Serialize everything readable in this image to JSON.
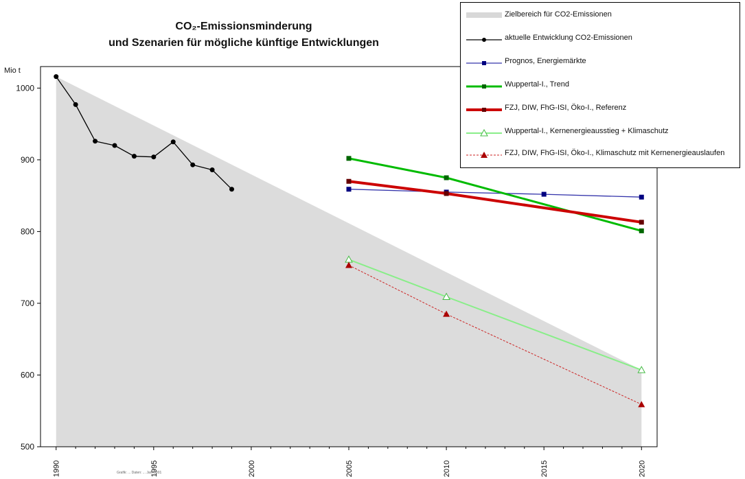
{
  "chart_data": {
    "type": "line",
    "title": "CO₂-Emissionsminderung",
    "subtitle": "und Szenarien für mögliche künftige Entwicklungen",
    "ylabel": "Mio t",
    "xlabel": "",
    "ylim": [
      500,
      1030
    ],
    "xlim": [
      1989.2,
      2020.8
    ],
    "yticks": [
      500,
      600,
      700,
      800,
      900,
      1000
    ],
    "xticks": [
      1990,
      1995,
      2000,
      2005,
      2010,
      2015,
      2020
    ],
    "grid": false,
    "legend_position": "top-right",
    "target_area": {
      "name": "Zielbereich für CO2-Emissionen",
      "color": "#dcdcdc",
      "x": [
        1990,
        2020
      ],
      "y": [
        1016,
        607
      ]
    },
    "series": [
      {
        "name": "aktuelle Entwicklung CO2-Emissionen",
        "color": "#000000",
        "width": 1.3,
        "marker": "circle",
        "dash": "",
        "x": [
          1990,
          1991,
          1992,
          1993,
          1994,
          1995,
          1996,
          1997,
          1998,
          1999
        ],
        "y": [
          1016,
          977,
          926,
          920,
          905,
          904,
          925,
          893,
          886,
          859
        ]
      },
      {
        "name": "Prognos, Energiemärkte",
        "color": "#3333aa",
        "width": 1.3,
        "marker": "square",
        "dash": "",
        "x": [
          2005,
          2010,
          2015,
          2020
        ],
        "y": [
          859,
          855,
          852,
          848
        ]
      },
      {
        "name": "Wuppertal-I., Trend",
        "color": "#00bb00",
        "width": 3,
        "marker": "square",
        "dash": "",
        "x": [
          2005,
          2010,
          2020
        ],
        "y": [
          902,
          875,
          801
        ]
      },
      {
        "name": "FZJ, DIW, FhG-ISI, Öko-I., Referenz",
        "color": "#cc0000",
        "width": 4,
        "marker": "square",
        "dash": "",
        "x": [
          2005,
          2010,
          2020
        ],
        "y": [
          870,
          853,
          813
        ]
      },
      {
        "name": "Wuppertal-I., Kernenergieausstieg + Klimaschutz",
        "color": "#88ee88",
        "width": 2,
        "marker": "triangle",
        "dash": "",
        "x": [
          2005,
          2010,
          2020
        ],
        "y": [
          761,
          709,
          607
        ]
      },
      {
        "name": "FZJ, DIW, FhG-ISI, Öko-I., Klimaschutz mit Kernenergieauslaufen",
        "color": "#cc2222",
        "width": 1,
        "marker": "triangle",
        "dash": "3,2",
        "x": [
          2005,
          2010,
          2020
        ],
        "y": [
          753,
          685,
          559
        ]
      }
    ]
  },
  "legend": {
    "items": [
      {
        "label": "Zielbereich für CO2-Emissionen"
      },
      {
        "label": "aktuelle Entwicklung CO2-Emissionen"
      },
      {
        "label": "Prognos, Energiemärkte"
      },
      {
        "label": "Wuppertal-I., Trend"
      },
      {
        "label": "FZJ, DIW, FhG-ISI, Öko-I., Referenz"
      },
      {
        "label": "Wuppertal-I., Kernenergieausstieg + Klimaschutz"
      },
      {
        "label": "FZJ, DIW, FhG-ISI, Öko-I., Klimaschutz mit Kernenergieauslaufen"
      }
    ]
  },
  "footer": {
    "source": "Grafik: ... Daten: ... Jan. 2001"
  }
}
